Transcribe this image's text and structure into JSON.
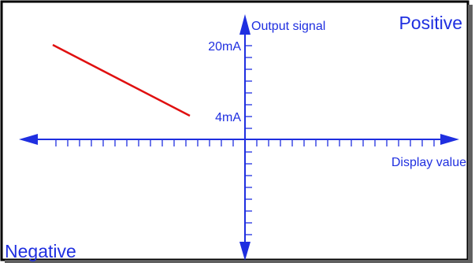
{
  "labels": {
    "positive": "Positive",
    "negative": "Negative",
    "y_axis": "Output signal",
    "x_axis": "Display value",
    "tick_high": "20mA",
    "tick_low": "4mA"
  },
  "colors": {
    "axis": "#1f2fe0",
    "line": "#e01010",
    "border": "#000000",
    "label_text": "#1f2fe0"
  },
  "output_line": {
    "from_output_ma": 20,
    "to_output_ma": 4,
    "direction": "falling"
  }
}
